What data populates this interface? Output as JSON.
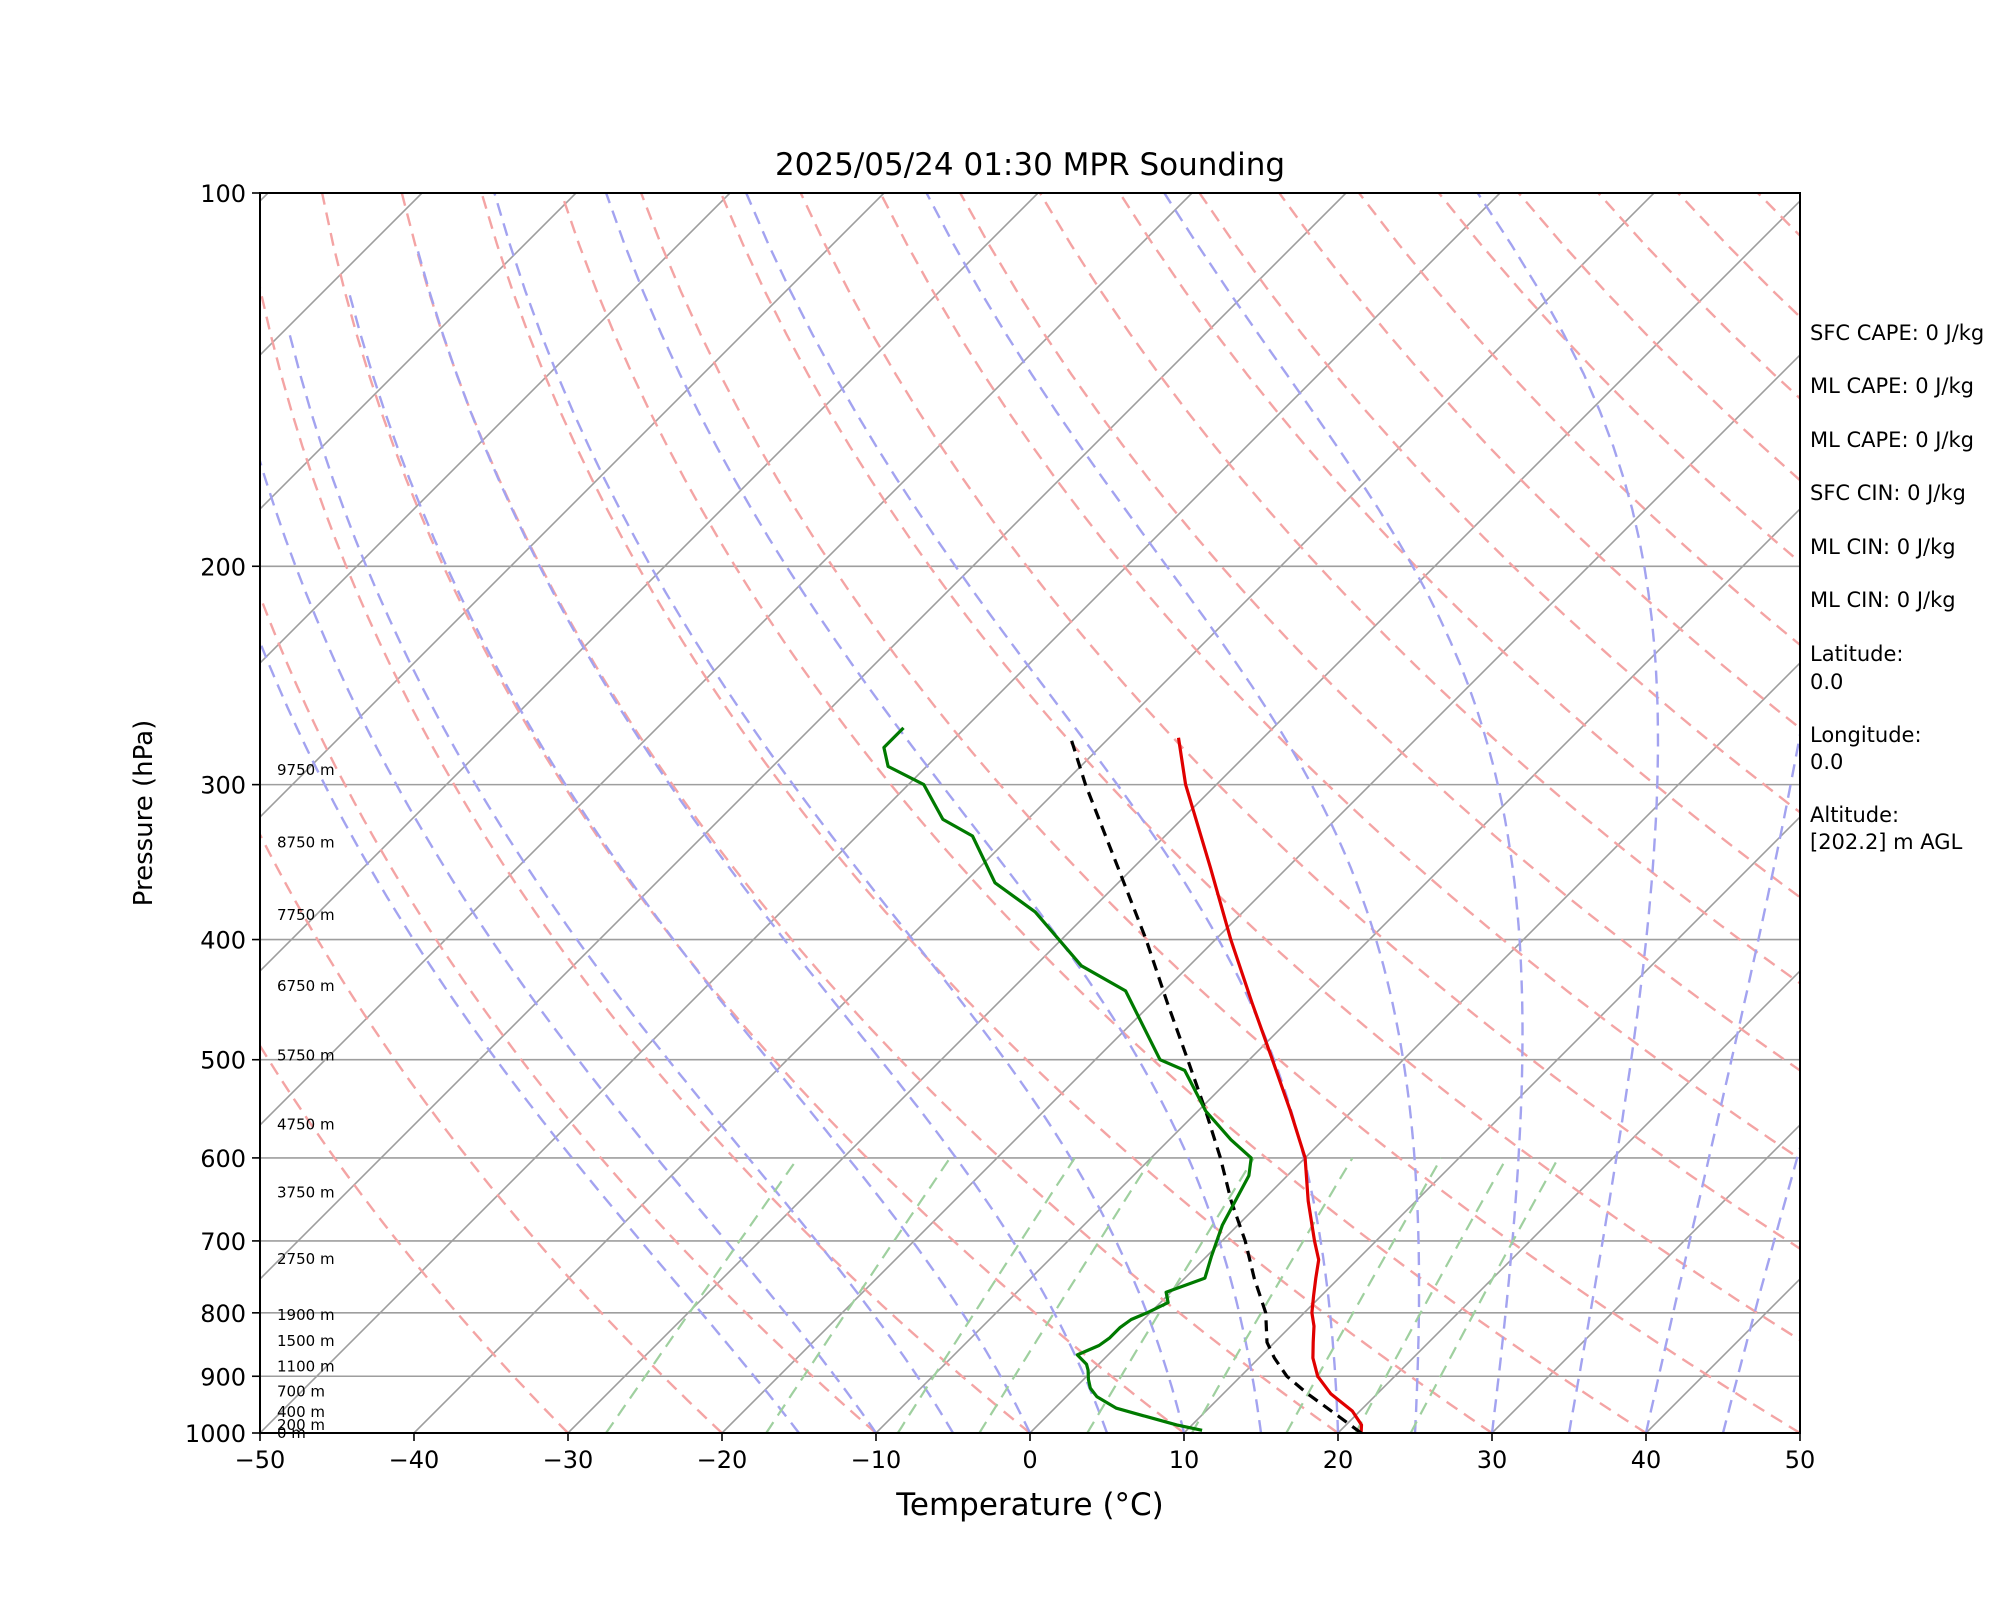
{
  "chart_data": {
    "type": "line",
    "title": "2025/05/24 01:30 MPR Sounding",
    "xlabel": "Temperature (°C)",
    "ylabel": "Pressure (hPa)",
    "xlim": [
      -50,
      50
    ],
    "ylim": [
      1000,
      100
    ],
    "y_scale": "log",
    "skew": "skew-T (isotherms slanted)",
    "x_ticks": [
      "−50",
      "−40",
      "−30",
      "−20",
      "−10",
      "0",
      "10",
      "20",
      "30",
      "40",
      "50"
    ],
    "x_tick_values": [
      -50,
      -40,
      -30,
      -20,
      -10,
      0,
      10,
      20,
      30,
      40,
      50
    ],
    "y_ticks": [
      "100",
      "200",
      "300",
      "400",
      "500",
      "600",
      "700",
      "800",
      "900",
      "1000"
    ],
    "y_tick_values": [
      100,
      200,
      300,
      400,
      500,
      600,
      700,
      800,
      900,
      1000
    ],
    "grid": true,
    "reference_lines": {
      "isotherms_color": "#9e9e9e",
      "dry_adiabats_color": "#f4a4a4",
      "moist_adiabats_color": "#a3a3f0",
      "mixing_ratio_color": "#9fd09f"
    },
    "series": [
      {
        "color": "#e00000",
        "style": "solid",
        "pressure": [
          1000,
          985,
          960,
          930,
          900,
          870,
          845,
          820,
          800,
          775,
          750,
          725,
          700,
          650,
          600,
          550,
          500,
          450,
          400,
          350,
          300,
          275
        ],
        "values": [
          21.5,
          21.0,
          19.5,
          17.0,
          15.0,
          13.5,
          12.5,
          11.5,
          10.5,
          9.5,
          8.5,
          7.5,
          6.0,
          3.0,
          0.0,
          -4.0,
          -8.5,
          -13.5,
          -19.0,
          -25.0,
          -32.0,
          -35.5
        ]
      },
      {
        "color": "#000000",
        "style": "dashed",
        "pressure": [
          1000,
          970,
          930,
          900,
          870,
          845,
          800,
          750,
          700,
          650,
          600,
          550,
          500,
          450,
          400,
          350,
          300,
          275
        ],
        "values": [
          21.5,
          19.0,
          15.5,
          13.0,
          11.0,
          9.5,
          7.5,
          4.5,
          1.5,
          -2.0,
          -5.5,
          -9.5,
          -14.0,
          -19.0,
          -24.5,
          -31.0,
          -38.5,
          -42.5
        ]
      },
      {
        "color": "#007a00",
        "style": "solid",
        "pressure": [
          995,
          985,
          970,
          955,
          935,
          920,
          905,
          890,
          880,
          865,
          850,
          838,
          822,
          810,
          800,
          785,
          770,
          750,
          720,
          680,
          620,
          600,
          580,
          550,
          510,
          500,
          440,
          420,
          380,
          360,
          330,
          320,
          300,
          290,
          280,
          270
        ],
        "values": [
          11.0,
          9.0,
          6.5,
          4.0,
          2.0,
          1.0,
          0.3,
          -0.3,
          -0.8,
          -2.0,
          -1.2,
          -1.0,
          -1.0,
          -0.8,
          -0.2,
          0.5,
          -0.3,
          1.3,
          0.3,
          -1.0,
          -2.5,
          -3.5,
          -6.0,
          -9.5,
          -13.5,
          -15.8,
          -22.5,
          -27.0,
          -33.5,
          -38.0,
          -42.5,
          -45.5,
          -49.0,
          -52.5,
          -54.0,
          -54.0
        ]
      }
    ],
    "height_labels": [
      {
        "label": "0 m",
        "pressure": 1000
      },
      {
        "label": "200 m",
        "pressure": 985
      },
      {
        "label": "400 m",
        "pressure": 962
      },
      {
        "label": "700 m",
        "pressure": 926
      },
      {
        "label": "1100 m",
        "pressure": 884
      },
      {
        "label": "1500 m",
        "pressure": 843
      },
      {
        "label": "1900 m",
        "pressure": 803
      },
      {
        "label": "2750 m",
        "pressure": 724
      },
      {
        "label": "3750 m",
        "pressure": 640
      },
      {
        "label": "4750 m",
        "pressure": 564
      },
      {
        "label": "5750 m",
        "pressure": 496
      },
      {
        "label": "6750 m",
        "pressure": 436
      },
      {
        "label": "7750 m",
        "pressure": 382
      },
      {
        "label": "8750 m",
        "pressure": 334
      },
      {
        "label": "9750 m",
        "pressure": 292
      }
    ]
  },
  "side_panel": {
    "lines": [
      "SFC CAPE: 0 J/kg",
      "ML CAPE: 0 J/kg",
      "ML CAPE: 0 J/kg",
      "SFC CIN: 0 J/kg",
      "ML CIN: 0 J/kg",
      "ML CIN: 0 J/kg"
    ],
    "latitude_label": "Latitude:",
    "latitude_value": "0.0",
    "longitude_label": "Longitude:",
    "longitude_value": "0.0",
    "altitude_label": "Altitude:",
    "altitude_value": "[202.2] m AGL"
  }
}
